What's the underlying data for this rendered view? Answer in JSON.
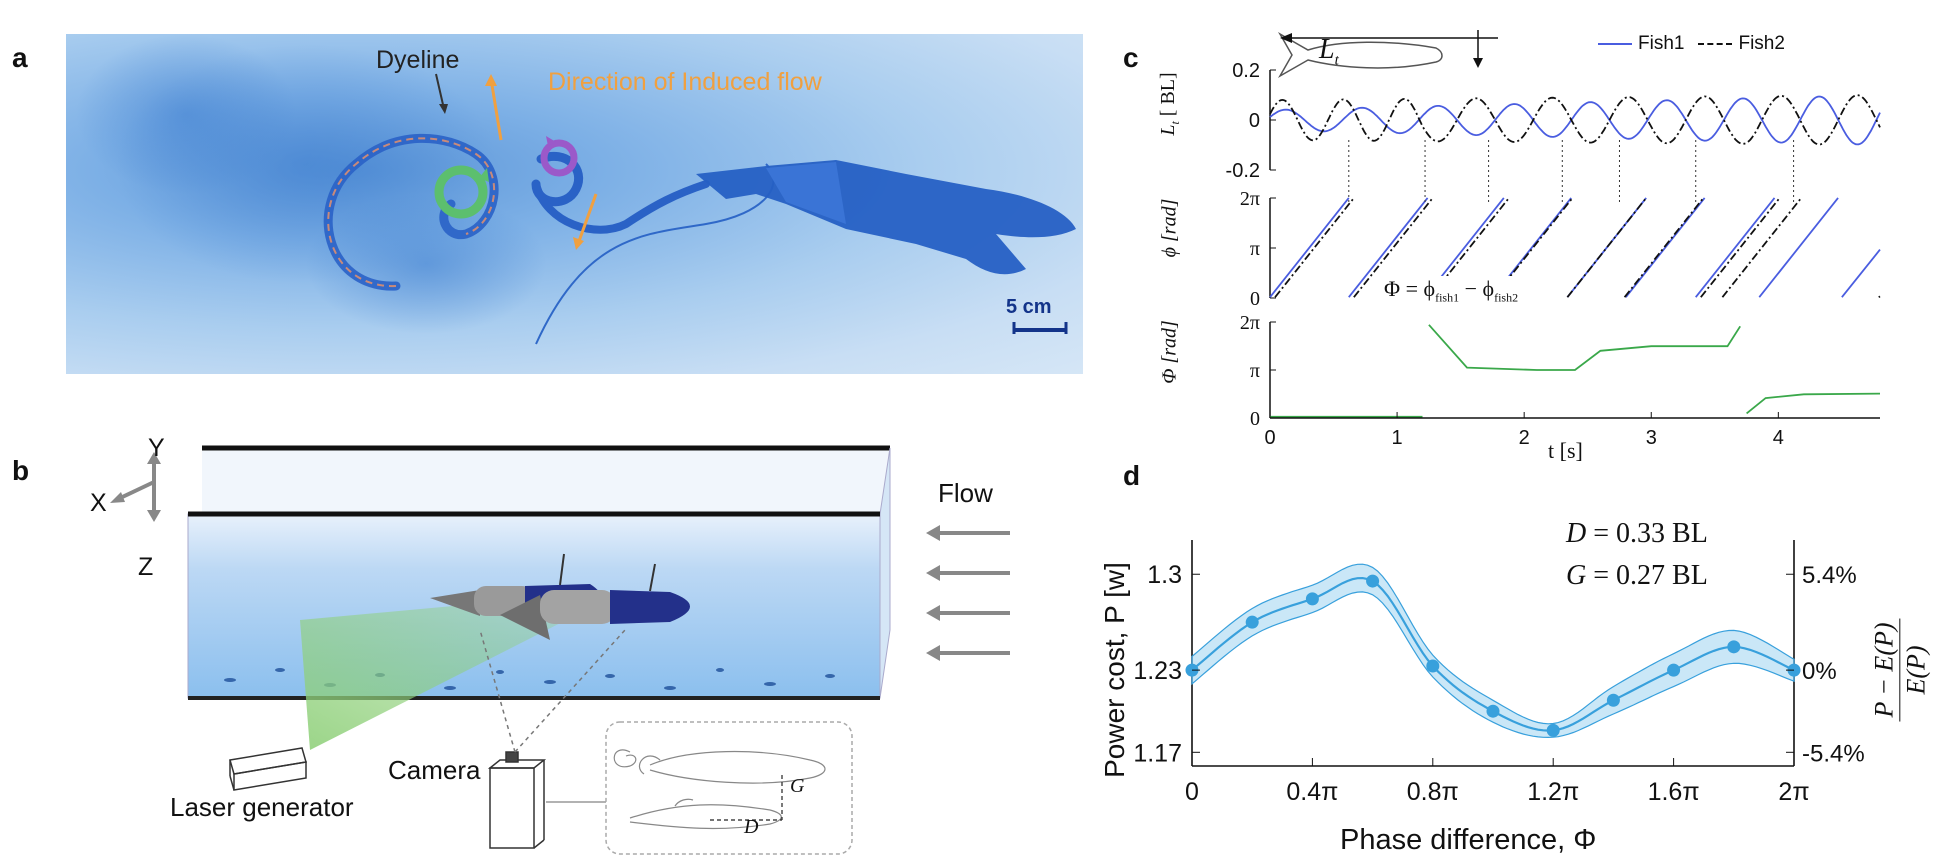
{
  "panels": {
    "a": "a",
    "b": "b",
    "c": "c",
    "d": "d"
  },
  "panel_a": {
    "dyeline_label": "Dyeline",
    "flow_label": "Direction of Induced flow",
    "scale_label": "5 cm",
    "colors": {
      "flow_label": "#f0a040",
      "dye": "#1f5fc4",
      "green_vortex": "#5cbf6e",
      "purple_vortex": "#9b59c9"
    }
  },
  "panel_b": {
    "axes": {
      "x": "X",
      "y": "Y",
      "z": "Z"
    },
    "flow_label": "Flow",
    "laser_label": "Laser generator",
    "camera_label": "Camera",
    "inset_g": "G",
    "inset_d": "D"
  },
  "panel_c": {
    "legend": {
      "fish1": "Fish1",
      "fish2": "Fish2"
    },
    "top_ylabel_sym": "L",
    "top_ylabel_sub": "t",
    "top_ylabel_unit": "[ BL]",
    "top_yticks": [
      "0.2",
      "0",
      "-0.2"
    ],
    "mid_ylabel": "ϕ  [rad]",
    "mid_yticks": [
      "2π",
      "π",
      "0"
    ],
    "bot_ylabel": "Φ  [rad]",
    "bot_yticks": [
      "2π",
      "π",
      "0"
    ],
    "formula_lhs": "Φ = ϕ",
    "formula_sub1": "fish1",
    "formula_mid": " − ϕ",
    "formula_sub2": "fish2",
    "xticks": [
      "0",
      "1",
      "2",
      "3",
      "4"
    ],
    "xlabel": "t  [s]",
    "inset_label_sym": "L",
    "inset_label_sub": "t",
    "colors": {
      "fish1": "#4a5de0",
      "fish2": "#111111",
      "phase": "#3aa84a"
    }
  },
  "chart_data": [
    {
      "type": "line",
      "panel": "c-top",
      "x_range": [
        0,
        4.8
      ],
      "ylim": [
        -0.2,
        0.2
      ],
      "ylabel": "Lt [ BL]",
      "series": [
        {
          "name": "Fish1",
          "style": "solid",
          "color": "#4a5de0",
          "amplitude_start": 0.04,
          "amplitude_end": 0.1,
          "period": 0.6
        },
        {
          "name": "Fish2",
          "style": "dashdot",
          "color": "#111111",
          "amplitude_start": 0.08,
          "amplitude_end": 0.1,
          "period": 0.6
        }
      ]
    },
    {
      "type": "line",
      "panel": "c-middle",
      "x_range": [
        0,
        4.8
      ],
      "ylim": [
        0,
        6.283
      ],
      "ylabel": "ϕ [rad]",
      "note": "sawtooth phase of each fish",
      "series": [
        {
          "name": "Fish1",
          "wraps_at": [
            0.0,
            0.62,
            1.22,
            1.75,
            2.34,
            2.8,
            3.35,
            3.85,
            4.5
          ]
        },
        {
          "name": "Fish2",
          "wraps_at": [
            0.0,
            0.62,
            1.22,
            1.72,
            2.3,
            2.75,
            3.35,
            3.52,
            4.75
          ]
        }
      ]
    },
    {
      "type": "line",
      "panel": "c-bottom",
      "x_range": [
        0,
        4.8
      ],
      "ylim": [
        0,
        6.283
      ],
      "ylabel": "Φ [rad]",
      "series": [
        {
          "name": "Φ",
          "color": "#3aa84a",
          "points": [
            [
              0,
              0.08
            ],
            [
              1.2,
              0.08
            ],
            [
              1.25,
              6.1
            ],
            [
              1.55,
              3.3
            ],
            [
              2.1,
              3.14
            ],
            [
              2.4,
              3.14
            ],
            [
              2.6,
              4.4
            ],
            [
              3.0,
              4.7
            ],
            [
              3.6,
              4.7
            ],
            [
              3.7,
              6.0
            ],
            [
              3.75,
              0.3
            ],
            [
              3.9,
              1.3
            ],
            [
              4.2,
              1.55
            ],
            [
              4.8,
              1.6
            ]
          ]
        }
      ],
      "formula": "Φ = ϕfish1 − ϕfish2",
      "xticks": [
        "0",
        "1",
        "2",
        "3",
        "4"
      ],
      "xlabel": "t [s]"
    },
    {
      "type": "line",
      "panel": "d",
      "xlabel": "Phase difference, Φ",
      "ylabel": "Power cost, P [w]",
      "ylabel_right": "(P − E(P)) / E(P)",
      "xticks": [
        "0",
        "0.4π",
        "0.8π",
        "1.2π",
        "1.6π",
        "2π"
      ],
      "yticks": [
        "1.3",
        "1.23",
        "1.17"
      ],
      "yticks_right": [
        "5.4%",
        "0%",
        "-5.4%"
      ],
      "xlim": [
        0,
        2
      ],
      "ylim": [
        1.16,
        1.325
      ],
      "annotations": [
        "D = 0.33 BL",
        "G = 0.27 BL"
      ],
      "color": "#38a0dc",
      "series": [
        {
          "name": "Power cost",
          "x": [
            0,
            0.2,
            0.4,
            0.6,
            0.8,
            1.0,
            1.2,
            1.4,
            1.6,
            1.8,
            2.0
          ],
          "values": [
            1.23,
            1.265,
            1.282,
            1.295,
            1.233,
            1.2,
            1.186,
            1.208,
            1.23,
            1.247,
            1.23
          ],
          "band": [
            0.01,
            0.01,
            0.01,
            0.01,
            0.008,
            0.008,
            0.005,
            0.01,
            0.012,
            0.012,
            0.008
          ]
        }
      ]
    }
  ],
  "panel_d": {
    "annot_d_sym": "D",
    "annot_d_val": " = 0.33 BL",
    "annot_g_sym": "G",
    "annot_g_val": " = 0.27 BL",
    "xlabel": "Phase difference, Φ",
    "ylabel": "Power cost, P [w]",
    "ylabel_right_num": "P − E(P)",
    "ylabel_right_den": "E(P)"
  }
}
